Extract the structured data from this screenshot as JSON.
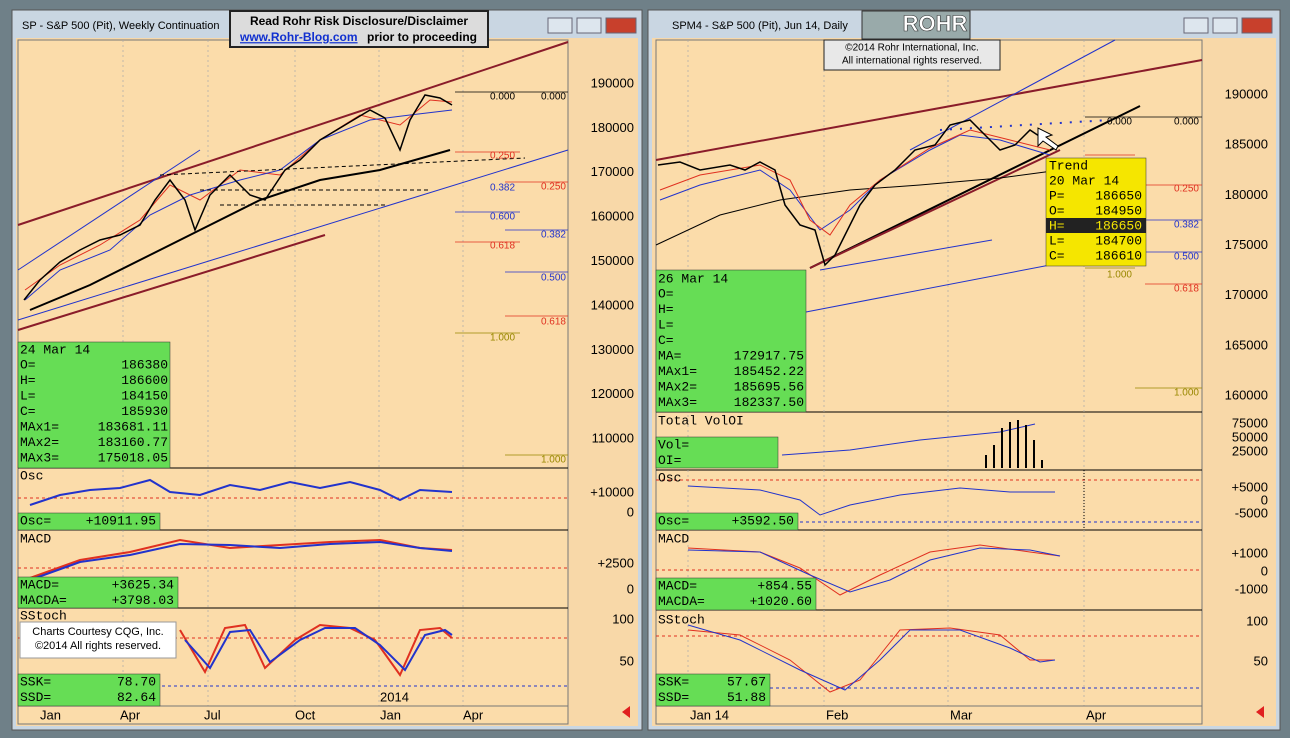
{
  "disclaimer": {
    "line1": "Read Rohr Risk Disclosure/Disclaimer",
    "link": "www.Rohr-Blog.com",
    "line2": "prior to proceeding"
  },
  "logo": "ROHR",
  "copyright": [
    "©2014 Rohr International, Inc.",
    "All international rights reserved."
  ],
  "left": {
    "title": "SP - S&P 500 (Pit), Weekly Continuation",
    "price_axis": [
      "190000",
      "180000",
      "170000",
      "160000",
      "150000",
      "140000",
      "130000",
      "120000",
      "110000"
    ],
    "fib_labels": [
      "0.000",
      "0.000",
      "0.250",
      "0.382",
      "0.250",
      "0.600",
      "0.382",
      "0.618",
      "0.500",
      "0.618",
      "1.000",
      "1.000"
    ],
    "info": {
      "date": "24 Mar 14",
      "rows": [
        [
          "O=",
          "186380"
        ],
        [
          "H=",
          "186600"
        ],
        [
          "L=",
          "184150"
        ],
        [
          "C=",
          "185930"
        ],
        [
          "MAx1=",
          "183681.11"
        ],
        [
          "MAx2=",
          "183160.77"
        ],
        [
          "MAx3=",
          "175018.05"
        ]
      ]
    },
    "osc": {
      "label": "Osc",
      "rows": [
        [
          "Osc=",
          "+10911.95"
        ]
      ],
      "axis": [
        "+10000",
        "0"
      ]
    },
    "macd": {
      "label": "MACD",
      "rows": [
        [
          "MACD=",
          "+3625.34"
        ],
        [
          "MACDA=",
          "+3798.03"
        ]
      ],
      "axis": [
        "+2500",
        "0"
      ]
    },
    "stoch": {
      "label": "SStoch",
      "rows": [
        [
          "SSK=",
          "78.70"
        ],
        [
          "SSD=",
          "82.64"
        ]
      ],
      "axis": [
        "100",
        "50"
      ]
    },
    "year": "2014",
    "x_axis": [
      "Jan",
      "Apr",
      "Jul",
      "Oct",
      "Jan",
      "Apr"
    ],
    "courtesy": [
      "Charts Courtesy CQG, Inc.",
      "©2014 All rights reserved."
    ]
  },
  "right": {
    "title": "SPM4 - S&P 500 (Pit), Jun 14, Daily",
    "price_axis": [
      "190000",
      "185000",
      "180000",
      "175000",
      "170000",
      "165000",
      "160000"
    ],
    "fib_labels": [
      "0.000",
      "0.000",
      "0.250",
      "0.382",
      "0.500",
      "0.618",
      "1.000",
      "1.000"
    ],
    "info": {
      "date": "26 Mar 14",
      "rows": [
        [
          "O=",
          ""
        ],
        [
          "H=",
          ""
        ],
        [
          "L=",
          ""
        ],
        [
          "C=",
          ""
        ],
        [
          "MA=",
          "172917.75"
        ],
        [
          "MAx1=",
          "185452.22"
        ],
        [
          "MAx2=",
          "185695.56"
        ],
        [
          "MAx3=",
          "182337.50"
        ]
      ]
    },
    "vol": {
      "label": "Total VolOI",
      "rows": [
        [
          "Vol=",
          ""
        ],
        [
          "OI=",
          ""
        ]
      ],
      "axis": [
        "75000",
        "50000",
        "25000"
      ]
    },
    "osc": {
      "label": "Osc",
      "rows": [
        [
          "Osc=",
          "+3592.50"
        ]
      ],
      "axis": [
        "+5000",
        "0",
        "-5000"
      ]
    },
    "macd": {
      "label": "MACD",
      "rows": [
        [
          "MACD=",
          "+854.55"
        ],
        [
          "MACDA=",
          "+1020.60"
        ]
      ],
      "axis": [
        "+1000",
        "0",
        "-1000"
      ]
    },
    "stoch": {
      "label": "SStoch",
      "rows": [
        [
          "SSK=",
          "57.67"
        ],
        [
          "SSD=",
          "51.88"
        ]
      ],
      "axis": [
        "100",
        "50"
      ]
    },
    "trend": {
      "title": "Trend",
      "date": "20 Mar 14",
      "rows": [
        [
          "P=",
          "186650"
        ],
        [
          "O=",
          "184950"
        ],
        [
          "H=",
          "186650"
        ],
        [
          "L=",
          "184700"
        ],
        [
          "C=",
          "186610"
        ]
      ]
    },
    "x_axis": [
      "Jan 14",
      "Feb",
      "Mar",
      "Apr"
    ]
  }
}
